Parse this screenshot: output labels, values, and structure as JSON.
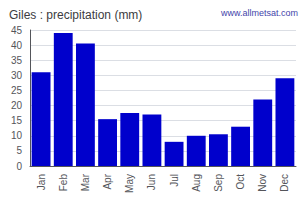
{
  "chart_data": {
    "type": "bar",
    "title": "Giles : precipitation (mm)",
    "categories": [
      "Jan",
      "Feb",
      "Mar",
      "Apr",
      "May",
      "Jun",
      "Jul",
      "Aug",
      "Sep",
      "Oct",
      "Nov",
      "Dec"
    ],
    "values": [
      31,
      44,
      40.5,
      15.5,
      17.5,
      17,
      8,
      10,
      10.5,
      13,
      22,
      29
    ],
    "color": "#0000CC",
    "ylim": [
      0,
      45
    ],
    "yticks": [
      0,
      5,
      10,
      15,
      20,
      25,
      30,
      35,
      40,
      45
    ],
    "grid": true,
    "annotations": [
      "www.allmetsat.com"
    ]
  }
}
